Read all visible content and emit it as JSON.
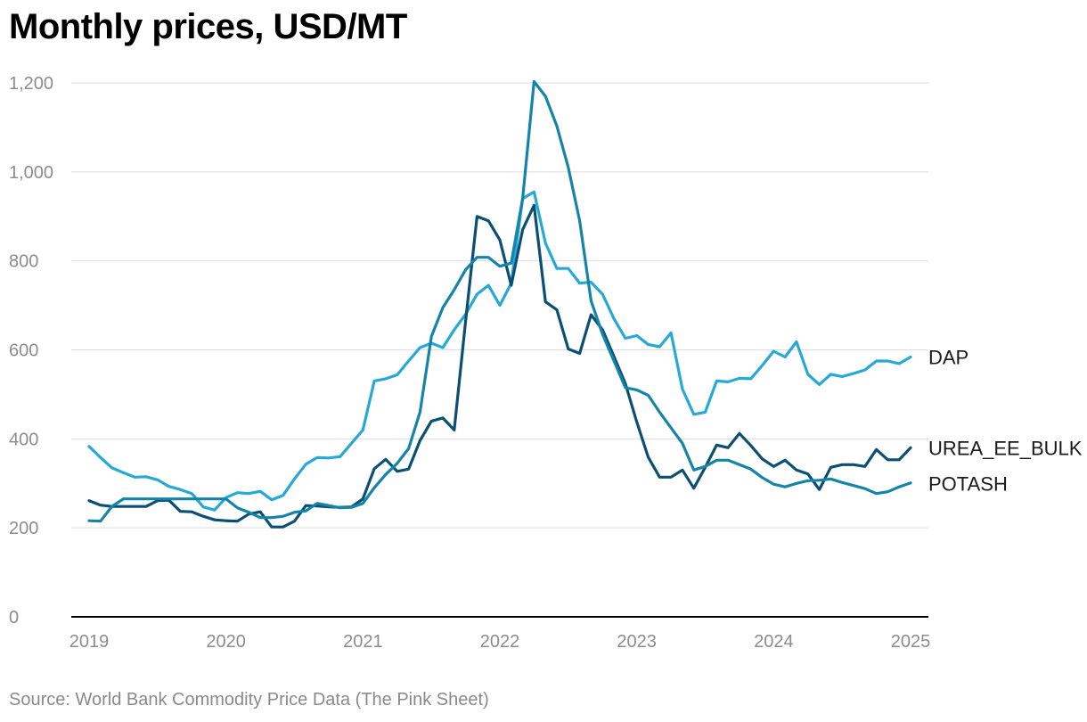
{
  "title": "Monthly prices, USD/MT",
  "source": "Source: World Bank Commodity Price Data (The Pink Sheet)",
  "chart_data": {
    "type": "line",
    "title": "Monthly prices, USD/MT",
    "xlabel": "",
    "ylabel": "",
    "x_start": 2019.0,
    "x_step_months": 1,
    "xlim": [
      2019,
      2025
    ],
    "ylim": [
      0,
      1200
    ],
    "y_ticks": [
      0,
      200,
      400,
      600,
      800,
      1000,
      1200
    ],
    "y_tick_labels": [
      "0",
      "200",
      "400",
      "600",
      "800",
      "1,000",
      "1,200"
    ],
    "x_ticks": [
      2019,
      2020,
      2021,
      2022,
      2023,
      2024,
      2025
    ],
    "x_tick_labels": [
      "2019",
      "2020",
      "2021",
      "2022",
      "2023",
      "2024",
      "2025"
    ],
    "grid": true,
    "series": [
      {
        "name": "DAP",
        "color": "#27a9d7",
        "values": [
          383,
          358,
          335,
          324,
          314,
          315,
          308,
          293,
          286,
          277,
          247,
          240,
          268,
          279,
          277,
          282,
          263,
          273,
          310,
          343,
          358,
          357,
          360,
          390,
          420,
          530,
          535,
          544,
          575,
          605,
          615,
          605,
          645,
          680,
          725,
          745,
          700,
          750,
          940,
          955,
          840,
          783,
          783,
          750,
          752,
          725,
          670,
          626,
          632,
          612,
          607,
          638,
          512,
          455,
          460,
          530,
          528,
          536,
          535,
          565,
          597,
          584,
          618,
          545,
          522,
          545,
          540,
          547,
          555,
          575,
          575,
          569,
          584
        ]
      },
      {
        "name": "UREA_EE_BULK",
        "color": "#0b4f73",
        "values": [
          261,
          251,
          248,
          248,
          248,
          248,
          261,
          262,
          237,
          236,
          226,
          218,
          216,
          215,
          231,
          236,
          202,
          202,
          215,
          250,
          249,
          247,
          246,
          247,
          265,
          333,
          354,
          327,
          332,
          396,
          440,
          447,
          420,
          665,
          900,
          890,
          847,
          745,
          870,
          925,
          708,
          690,
          602,
          592,
          679,
          645,
          585,
          524,
          438,
          359,
          314,
          314,
          330,
          289,
          336,
          386,
          380,
          412,
          385,
          355,
          338,
          352,
          330,
          321,
          286,
          336,
          342,
          342,
          338,
          376,
          353,
          353,
          380
        ]
      },
      {
        "name": "POTASH",
        "color": "#1485a9",
        "values": [
          216,
          215,
          248,
          265,
          265,
          265,
          265,
          265,
          265,
          265,
          265,
          265,
          265,
          245,
          235,
          223,
          223,
          226,
          235,
          238,
          255,
          250,
          245,
          246,
          255,
          290,
          320,
          345,
          378,
          460,
          630,
          695,
          735,
          780,
          808,
          808,
          788,
          795,
          940,
          1203,
          1170,
          1103,
          1010,
          890,
          710,
          635,
          575,
          515,
          510,
          498,
          460,
          425,
          390,
          330,
          338,
          352,
          352,
          342,
          332,
          313,
          298,
          292,
          300,
          306,
          307,
          310,
          302,
          295,
          288,
          277,
          281,
          292,
          301
        ]
      }
    ]
  }
}
